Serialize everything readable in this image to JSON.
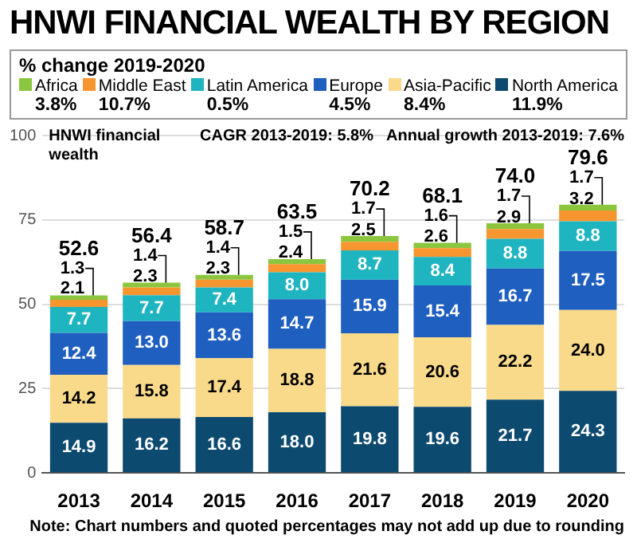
{
  "chart_data": {
    "type": "bar",
    "title": "HNWI FINANCIAL WEALTH BY REGION",
    "ylabel": "HNWI financial wealth",
    "legend_title": "% change 2019-2020",
    "legend": "top",
    "stacked": true,
    "grid": "y",
    "categories": [
      "2013",
      "2014",
      "2015",
      "2016",
      "2017",
      "2018",
      "2019",
      "2020"
    ],
    "series": [
      {
        "name": "North America",
        "color": "#0d4a70",
        "values": [
          14.9,
          16.2,
          16.6,
          18.0,
          19.8,
          19.6,
          21.7,
          24.3
        ],
        "value_labels": [
          "14.9",
          "16.2",
          "16.6",
          "18.0",
          "19.8",
          "19.6",
          "21.7",
          "24.3"
        ]
      },
      {
        "name": "Asia-Pacific",
        "color": "#f9d98a",
        "values": [
          14.2,
          15.8,
          17.4,
          18.8,
          21.6,
          20.6,
          22.2,
          24.0
        ],
        "value_labels": [
          "14.2",
          "15.8",
          "17.4",
          "18.8",
          "21.6",
          "20.6",
          "22.2",
          "24.0"
        ]
      },
      {
        "name": "Europe",
        "color": "#1f5fbf",
        "values": [
          12.4,
          13.0,
          13.6,
          14.7,
          15.9,
          15.4,
          16.7,
          17.5
        ],
        "value_labels": [
          "12.4",
          "13.0",
          "13.6",
          "14.7",
          "15.9",
          "15.4",
          "16.7",
          "17.5"
        ]
      },
      {
        "name": "Latin America",
        "color": "#1fb5c0",
        "values": [
          7.7,
          7.7,
          7.4,
          8.0,
          8.7,
          8.4,
          8.8,
          8.8
        ],
        "value_labels": [
          "7.7",
          "7.7",
          "7.4",
          "8.0",
          "8.7",
          "8.4",
          "8.8",
          "8.8"
        ]
      },
      {
        "name": "Middle East",
        "color": "#f7962f",
        "values": [
          2.1,
          2.3,
          2.3,
          2.4,
          2.5,
          2.6,
          2.9,
          3.2
        ],
        "value_labels": [
          "2.1",
          "2.3",
          "2.3",
          "2.4",
          "2.5",
          "2.6",
          "2.9",
          "3.2"
        ]
      },
      {
        "name": "Africa",
        "color": "#8cc63f",
        "values": [
          1.3,
          1.4,
          1.4,
          1.5,
          1.7,
          1.6,
          1.7,
          1.7
        ],
        "value_labels": [
          "1.3",
          "1.4",
          "1.4",
          "1.5",
          "1.7",
          "1.6",
          "1.7",
          "1.7"
        ]
      }
    ],
    "totals": [
      "52.6",
      "56.4",
      "58.7",
      "63.5",
      "70.2",
      "68.1",
      "74.0",
      "79.6"
    ],
    "ylim": [
      0,
      100
    ],
    "yticks": [
      0,
      25,
      50,
      75,
      100
    ],
    "annotations": [
      "11.9%",
      "8.4%",
      "4.5%",
      "0.5%",
      "10.7%",
      "3.8%",
      "CAGR 2013-2019: 5.8%",
      "Annual growth 2013-2019: 7.6%",
      "Note: Chart numbers and quoted percentages may not add up due to rounding"
    ]
  }
}
